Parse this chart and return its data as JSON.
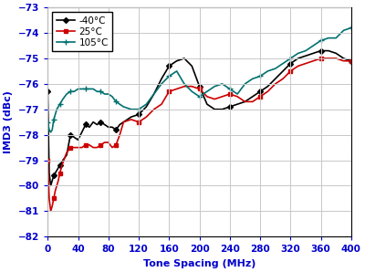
{
  "xlabel": "Tone Spacing (MHz)",
  "ylabel": "IMD3 (dBc)",
  "xlim": [
    0,
    400
  ],
  "ylim": [
    -82,
    -73
  ],
  "xticks": [
    0,
    40,
    80,
    120,
    160,
    200,
    240,
    280,
    320,
    360,
    400
  ],
  "yticks": [
    -82,
    -81,
    -80,
    -79,
    -78,
    -77,
    -76,
    -75,
    -74,
    -73
  ],
  "label_color": "#0000cd",
  "tick_color": "#0000cd",
  "series": [
    {
      "label": "-40°C",
      "color": "#000000",
      "marker": "D",
      "markersize": 3.0,
      "linewidth": 1.2,
      "x": [
        0,
        2,
        4,
        6,
        8,
        10,
        12,
        14,
        16,
        18,
        20,
        25,
        30,
        35,
        40,
        45,
        50,
        55,
        60,
        65,
        70,
        75,
        80,
        85,
        90,
        95,
        100,
        110,
        120,
        130,
        140,
        150,
        160,
        170,
        180,
        190,
        200,
        210,
        220,
        230,
        240,
        250,
        260,
        270,
        280,
        290,
        300,
        310,
        320,
        330,
        340,
        350,
        360,
        370,
        380,
        390,
        400
      ],
      "y": [
        -76.3,
        -79.5,
        -80.0,
        -79.8,
        -79.6,
        -79.5,
        -79.4,
        -79.3,
        -79.2,
        -79.1,
        -79.0,
        -78.8,
        -78.0,
        -78.1,
        -78.2,
        -77.9,
        -77.6,
        -77.7,
        -77.5,
        -77.6,
        -77.5,
        -77.6,
        -77.7,
        -77.7,
        -77.8,
        -77.6,
        -77.5,
        -77.3,
        -77.2,
        -76.9,
        -76.4,
        -75.8,
        -75.3,
        -75.1,
        -75.0,
        -75.3,
        -76.1,
        -76.8,
        -77.0,
        -77.0,
        -76.9,
        -76.8,
        -76.7,
        -76.5,
        -76.3,
        -76.1,
        -75.8,
        -75.5,
        -75.2,
        -75.0,
        -74.9,
        -74.8,
        -74.7,
        -74.7,
        -74.8,
        -75.0,
        -75.1
      ]
    },
    {
      "label": "25°C",
      "color": "#cc0000",
      "marker": "s",
      "markersize": 3.0,
      "linewidth": 1.2,
      "x": [
        0,
        2,
        4,
        6,
        8,
        10,
        12,
        14,
        16,
        18,
        20,
        25,
        30,
        35,
        40,
        45,
        50,
        55,
        60,
        65,
        70,
        75,
        80,
        85,
        90,
        95,
        100,
        110,
        120,
        130,
        140,
        150,
        160,
        170,
        180,
        190,
        200,
        210,
        220,
        230,
        240,
        250,
        260,
        270,
        280,
        290,
        300,
        310,
        320,
        330,
        340,
        350,
        360,
        370,
        380,
        390,
        400
      ],
      "y": [
        -79.0,
        -80.5,
        -81.0,
        -80.8,
        -80.5,
        -80.2,
        -80.0,
        -79.8,
        -79.5,
        -79.3,
        -79.1,
        -78.7,
        -78.5,
        -78.5,
        -78.5,
        -78.5,
        -78.4,
        -78.4,
        -78.5,
        -78.5,
        -78.4,
        -78.3,
        -78.3,
        -78.5,
        -78.4,
        -78.0,
        -77.5,
        -77.4,
        -77.5,
        -77.3,
        -77.0,
        -76.8,
        -76.3,
        -76.2,
        -76.1,
        -76.1,
        -76.2,
        -76.5,
        -76.6,
        -76.5,
        -76.4,
        -76.5,
        -76.7,
        -76.7,
        -76.5,
        -76.3,
        -76.0,
        -75.8,
        -75.5,
        -75.3,
        -75.2,
        -75.1,
        -75.0,
        -75.0,
        -75.0,
        -75.1,
        -75.1
      ]
    },
    {
      "label": "105°C",
      "color": "#007070",
      "marker": "+",
      "markersize": 4.0,
      "linewidth": 1.2,
      "x": [
        0,
        2,
        4,
        6,
        8,
        10,
        12,
        14,
        16,
        18,
        20,
        25,
        30,
        35,
        40,
        45,
        50,
        55,
        60,
        65,
        70,
        75,
        80,
        85,
        90,
        95,
        100,
        110,
        120,
        130,
        140,
        150,
        160,
        170,
        180,
        190,
        200,
        210,
        220,
        230,
        240,
        250,
        260,
        270,
        280,
        290,
        300,
        310,
        320,
        330,
        340,
        350,
        360,
        370,
        380,
        390,
        400
      ],
      "y": [
        -77.5,
        -77.8,
        -77.9,
        -77.8,
        -77.4,
        -77.2,
        -77.0,
        -76.9,
        -76.8,
        -76.7,
        -76.6,
        -76.4,
        -76.3,
        -76.3,
        -76.2,
        -76.2,
        -76.2,
        -76.2,
        -76.2,
        -76.3,
        -76.3,
        -76.4,
        -76.4,
        -76.5,
        -76.7,
        -76.8,
        -76.9,
        -77.0,
        -77.0,
        -76.8,
        -76.4,
        -76.0,
        -75.7,
        -75.5,
        -76.0,
        -76.3,
        -76.5,
        -76.3,
        -76.1,
        -76.0,
        -76.2,
        -76.4,
        -76.0,
        -75.8,
        -75.7,
        -75.5,
        -75.4,
        -75.2,
        -75.0,
        -74.8,
        -74.7,
        -74.5,
        -74.3,
        -74.2,
        -74.2,
        -73.9,
        -73.8
      ]
    }
  ],
  "legend_loc": "upper left",
  "grid_color": "#c8c8c8",
  "bg_color": "#ffffff",
  "markevery": 4,
  "spine_color": "#000000"
}
